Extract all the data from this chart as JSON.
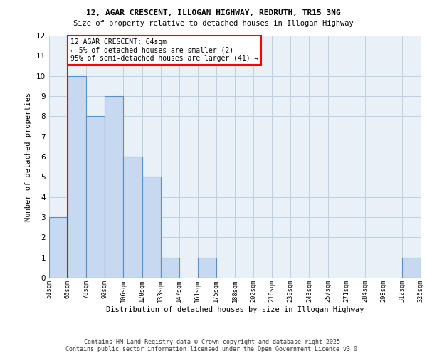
{
  "title1": "12, AGAR CRESCENT, ILLOGAN HIGHWAY, REDRUTH, TR15 3NG",
  "title2": "Size of property relative to detached houses in Illogan Highway",
  "xlabel": "Distribution of detached houses by size in Illogan Highway",
  "ylabel": "Number of detached properties",
  "bin_labels": [
    "51sqm",
    "65sqm",
    "78sqm",
    "92sqm",
    "106sqm",
    "120sqm",
    "133sqm",
    "147sqm",
    "161sqm",
    "175sqm",
    "188sqm",
    "202sqm",
    "216sqm",
    "230sqm",
    "243sqm",
    "257sqm",
    "271sqm",
    "284sqm",
    "298sqm",
    "312sqm",
    "326sqm"
  ],
  "bar_heights": [
    3,
    10,
    8,
    9,
    6,
    5,
    1,
    0,
    1,
    0,
    0,
    0,
    0,
    0,
    0,
    0,
    0,
    0,
    0,
    1
  ],
  "bar_color": "#c6d9f0",
  "bar_edgecolor": "#5a8fc3",
  "bar_linewidth": 0.8,
  "red_line_x": 1,
  "annotation_text": "12 AGAR CRESCENT: 64sqm\n← 5% of detached houses are smaller (2)\n95% of semi-detached houses are larger (41) →",
  "annotation_box_color": "white",
  "annotation_box_edgecolor": "red",
  "ylim": [
    0,
    12
  ],
  "yticks": [
    0,
    1,
    2,
    3,
    4,
    5,
    6,
    7,
    8,
    9,
    10,
    11,
    12
  ],
  "grid_color": "#c0cfdf",
  "background_color": "#e8f0f8",
  "footer_line1": "Contains HM Land Registry data © Crown copyright and database right 2025.",
  "footer_line2": "Contains public sector information licensed under the Open Government Licence v3.0."
}
